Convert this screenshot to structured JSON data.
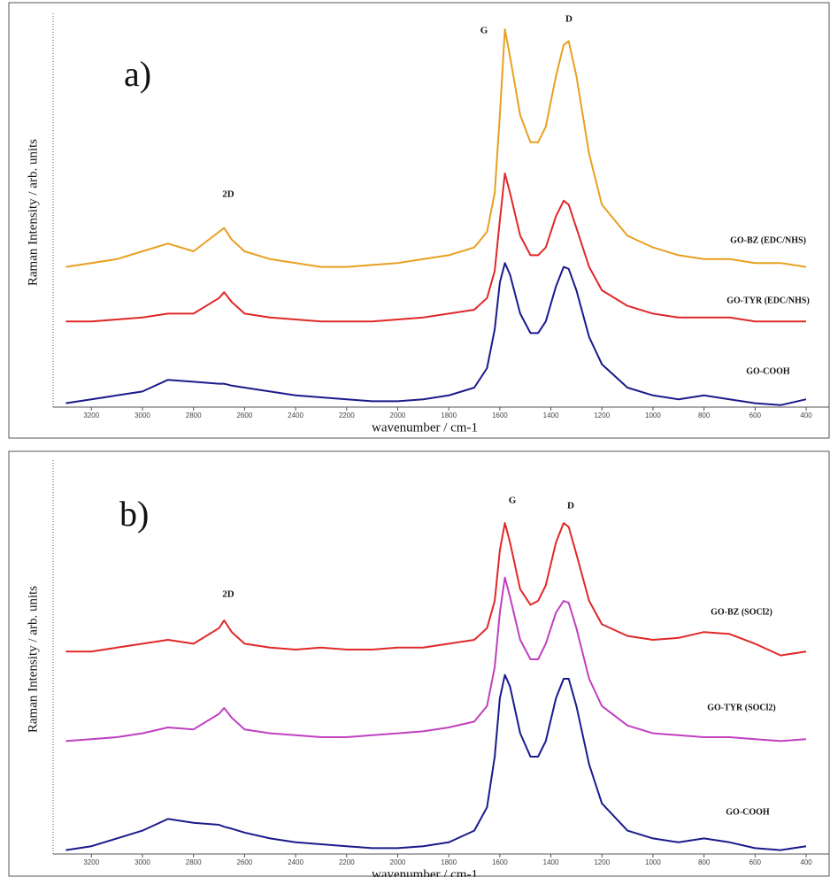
{
  "chart_data": [
    {
      "type": "line",
      "panel_label": "a)",
      "x_label": "wavenumber / cm-1",
      "y_label": "Raman Intensity / arb. units",
      "annotations": [
        "2D",
        "G",
        "D"
      ],
      "x": [
        3300,
        3200,
        3100,
        3000,
        2900,
        2800,
        2700,
        2680,
        2650,
        2600,
        2500,
        2400,
        2300,
        2200,
        2100,
        2000,
        1900,
        1800,
        1700,
        1650,
        1620,
        1600,
        1580,
        1560,
        1520,
        1480,
        1450,
        1420,
        1380,
        1350,
        1330,
        1300,
        1250,
        1200,
        1100,
        1000,
        900,
        800,
        700,
        600,
        500,
        400
      ],
      "xlim": [
        3350,
        310
      ],
      "ylim": [
        0,
        100
      ],
      "xticks": [
        3200,
        3000,
        2800,
        2600,
        2400,
        2200,
        2000,
        1800,
        1600,
        1400,
        1200,
        1000,
        800,
        600,
        400
      ],
      "series": [
        {
          "name": "GO-BZ (EDC/NHS)",
          "color": "#e8a020",
          "values": [
            36,
            37,
            38,
            40,
            42,
            40,
            45,
            46,
            43,
            40,
            38,
            37,
            36,
            36,
            36.5,
            37,
            38,
            39,
            41,
            45,
            55,
            75,
            97,
            90,
            75,
            68,
            68,
            72,
            85,
            93,
            94,
            85,
            65,
            52,
            44,
            41,
            39,
            38,
            38,
            37,
            37,
            36
          ]
        },
        {
          "name": "GO-TYR (EDC/NHS)",
          "color": "#e02828",
          "values": [
            22,
            22,
            22.5,
            23,
            24,
            24,
            28,
            29.5,
            27,
            24,
            23,
            22.5,
            22,
            22,
            22,
            22.5,
            23,
            24,
            25,
            28,
            35,
            48,
            60,
            55,
            44,
            39,
            39,
            41,
            49,
            53,
            52,
            46,
            36,
            30,
            26,
            24,
            23,
            23,
            23,
            22,
            22,
            22
          ]
        },
        {
          "name": "GO-COOH",
          "color": "#1a1a8c",
          "values": [
            1,
            2,
            3,
            4,
            7,
            6.5,
            6,
            6,
            5.5,
            5,
            4,
            3,
            2.5,
            2,
            1.5,
            1.5,
            2,
            3,
            5,
            10,
            20,
            32,
            37,
            34,
            24,
            19,
            19,
            22,
            31,
            36,
            35.5,
            30,
            18,
            11,
            5,
            3,
            2,
            3,
            2,
            1,
            0.5,
            2
          ]
        }
      ]
    },
    {
      "type": "line",
      "panel_label": "b)",
      "x_label": "wavenumber / cm-1",
      "y_label": "Raman Intensity / arb. units",
      "annotations": [
        "2D",
        "G",
        "D"
      ],
      "x": [
        3300,
        3200,
        3100,
        3000,
        2900,
        2800,
        2700,
        2680,
        2650,
        2600,
        2500,
        2400,
        2300,
        2200,
        2100,
        2000,
        1900,
        1800,
        1700,
        1650,
        1620,
        1600,
        1580,
        1560,
        1520,
        1480,
        1450,
        1420,
        1380,
        1350,
        1330,
        1300,
        1250,
        1200,
        1100,
        1000,
        900,
        800,
        700,
        600,
        500,
        400
      ],
      "xlim": [
        3350,
        310
      ],
      "ylim": [
        0,
        100
      ],
      "xticks": [
        3200,
        3000,
        2800,
        2600,
        2400,
        2200,
        2000,
        1800,
        1600,
        1400,
        1200,
        1000,
        800,
        600,
        400
      ],
      "series": [
        {
          "name": "GO-BZ (SOCl2)",
          "color": "#e02828",
          "values": [
            52,
            52,
            53,
            54,
            55,
            54,
            58,
            60,
            57,
            54,
            53,
            52.5,
            53,
            52.5,
            52.5,
            53,
            53,
            54,
            55,
            58,
            65,
            78,
            85,
            80,
            68,
            64,
            65,
            69,
            80,
            85,
            84,
            77,
            65,
            59,
            56,
            55,
            55.5,
            57,
            56.5,
            54,
            51,
            52
          ]
        },
        {
          "name": "GO-TYR (SOCl2)",
          "color": "#c040c0",
          "values": [
            29,
            29.5,
            30,
            31,
            32.5,
            32,
            36,
            37.5,
            35,
            32,
            31,
            30.5,
            30,
            30,
            30.5,
            31,
            31.5,
            32.5,
            34,
            38,
            48,
            62,
            71,
            66,
            55,
            50,
            50,
            54,
            62,
            65,
            64.5,
            58,
            45,
            38,
            33,
            31,
            30.5,
            30,
            30,
            29.5,
            29,
            29.5
          ]
        },
        {
          "name": "GO-COOH",
          "color": "#1a1a8c",
          "values": [
            1,
            2,
            4,
            6,
            9,
            8,
            7.5,
            7,
            6.5,
            5.5,
            4,
            3,
            2.5,
            2,
            1.5,
            1.5,
            2,
            3,
            6,
            12,
            25,
            40,
            46,
            43,
            31,
            25,
            25,
            29,
            40,
            45,
            45,
            38,
            23,
            13,
            6,
            4,
            3,
            4,
            3,
            1.5,
            1,
            2
          ]
        }
      ]
    }
  ]
}
